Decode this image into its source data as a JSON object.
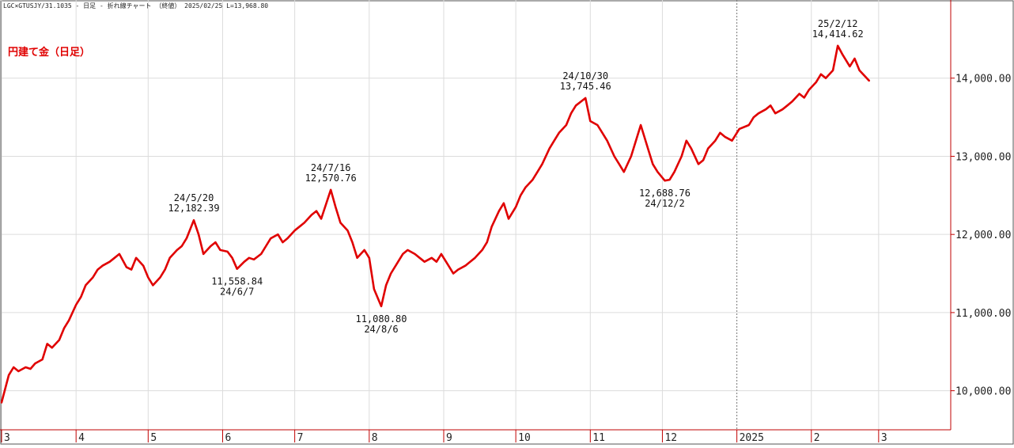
{
  "header": {
    "text": "LGC×GTUSJY/31.1035 - 日足 - 折れ線チャート （終値）  2025/02/25  L=13,968.80"
  },
  "chart_data": {
    "type": "line",
    "title": "円建て金（日足）",
    "series_color": "#e00000",
    "ylim": [
      9500,
      15000
    ],
    "y_ticks": [
      10000,
      11000,
      12000,
      13000,
      14000
    ],
    "y_tick_labels": [
      "10,000.00",
      "11,000.00",
      "12,000.00",
      "13,000.00",
      "14,000.00"
    ],
    "grid": true,
    "x_month_labels": [
      "3",
      "4",
      "5",
      "6",
      "7",
      "8",
      "9",
      "10",
      "11",
      "12",
      "2025",
      "2",
      "3"
    ],
    "year_divider_label": "2025",
    "x_start": "2024-03-01",
    "x_end": "2025-03-31",
    "series": [
      {
        "x": [
          "2024-03-01",
          "2024-03-04",
          "2024-03-06",
          "2024-03-08",
          "2024-03-11",
          "2024-03-13",
          "2024-03-15",
          "2024-03-18",
          "2024-03-20",
          "2024-03-22",
          "2024-03-25",
          "2024-03-27",
          "2024-03-29",
          "2024-04-01",
          "2024-04-03",
          "2024-04-05",
          "2024-04-08",
          "2024-04-10",
          "2024-04-12",
          "2024-04-15",
          "2024-04-17",
          "2024-04-19",
          "2024-04-22",
          "2024-04-24",
          "2024-04-26",
          "2024-04-29",
          "2024-05-01",
          "2024-05-03",
          "2024-05-06",
          "2024-05-08",
          "2024-05-10",
          "2024-05-13",
          "2024-05-15",
          "2024-05-17",
          "2024-05-20",
          "2024-05-22",
          "2024-05-24",
          "2024-05-27",
          "2024-05-29",
          "2024-05-31",
          "2024-06-03",
          "2024-06-05",
          "2024-06-07",
          "2024-06-10",
          "2024-06-12",
          "2024-06-14",
          "2024-06-17",
          "2024-06-19",
          "2024-06-21",
          "2024-06-24",
          "2024-06-26",
          "2024-06-28",
          "2024-07-01",
          "2024-07-03",
          "2024-07-05",
          "2024-07-08",
          "2024-07-10",
          "2024-07-12",
          "2024-07-16",
          "2024-07-18",
          "2024-07-20",
          "2024-07-23",
          "2024-07-25",
          "2024-07-27",
          "2024-07-30",
          "2024-08-01",
          "2024-08-03",
          "2024-08-06",
          "2024-08-08",
          "2024-08-10",
          "2024-08-13",
          "2024-08-15",
          "2024-08-17",
          "2024-08-20",
          "2024-08-22",
          "2024-08-24",
          "2024-08-27",
          "2024-08-29",
          "2024-08-31",
          "2024-09-03",
          "2024-09-05",
          "2024-09-07",
          "2024-09-10",
          "2024-09-12",
          "2024-09-14",
          "2024-09-17",
          "2024-09-19",
          "2024-09-21",
          "2024-09-24",
          "2024-09-26",
          "2024-09-28",
          "2024-10-01",
          "2024-10-03",
          "2024-10-05",
          "2024-10-08",
          "2024-10-10",
          "2024-10-12",
          "2024-10-15",
          "2024-10-17",
          "2024-10-19",
          "2024-10-22",
          "2024-10-24",
          "2024-10-26",
          "2024-10-30",
          "2024-11-01",
          "2024-11-04",
          "2024-11-06",
          "2024-11-08",
          "2024-11-11",
          "2024-11-13",
          "2024-11-15",
          "2024-11-18",
          "2024-11-20",
          "2024-11-22",
          "2024-11-25",
          "2024-11-27",
          "2024-11-29",
          "2024-12-02",
          "2024-12-04",
          "2024-12-06",
          "2024-12-09",
          "2024-12-11",
          "2024-12-13",
          "2024-12-16",
          "2024-12-18",
          "2024-12-20",
          "2024-12-23",
          "2024-12-25",
          "2024-12-27",
          "2024-12-30",
          "2025-01-02",
          "2025-01-06",
          "2025-01-08",
          "2025-01-10",
          "2025-01-13",
          "2025-01-15",
          "2025-01-17",
          "2025-01-20",
          "2025-01-22",
          "2025-01-24",
          "2025-01-27",
          "2025-01-29",
          "2025-01-31",
          "2025-02-03",
          "2025-02-05",
          "2025-02-07",
          "2025-02-10",
          "2025-02-12",
          "2025-02-14",
          "2025-02-17",
          "2025-02-19",
          "2025-02-21",
          "2025-02-25"
        ],
        "y": [
          9850,
          10200,
          10300,
          10250,
          10300,
          10280,
          10350,
          10400,
          10600,
          10550,
          10650,
          10800,
          10900,
          11100,
          11200,
          11350,
          11450,
          11550,
          11600,
          11650,
          11700,
          11750,
          11580,
          11550,
          11700,
          11600,
          11450,
          11350,
          11450,
          11550,
          11700,
          11800,
          11850,
          11950,
          12182.39,
          12000,
          11750,
          11850,
          11900,
          11800,
          11780,
          11700,
          11558.84,
          11650,
          11700,
          11680,
          11750,
          11850,
          11950,
          12000,
          11900,
          11950,
          12050,
          12100,
          12150,
          12250,
          12300,
          12200,
          12570.76,
          12350,
          12150,
          12050,
          11900,
          11700,
          11800,
          11700,
          11300,
          11080.8,
          11350,
          11500,
          11650,
          11750,
          11800,
          11750,
          11700,
          11650,
          11700,
          11650,
          11750,
          11600,
          11500,
          11550,
          11600,
          11650,
          11700,
          11800,
          11900,
          12100,
          12300,
          12400,
          12200,
          12350,
          12500,
          12600,
          12700,
          12800,
          12900,
          13100,
          13200,
          13300,
          13400,
          13550,
          13650,
          13745.46,
          13450,
          13400,
          13300,
          13200,
          13000,
          12900,
          12800,
          13000,
          13200,
          13400,
          13100,
          12900,
          12800,
          12688.76,
          12700,
          12800,
          13000,
          13200,
          13100,
          12900,
          12950,
          13100,
          13200,
          13300,
          13250,
          13200,
          13350,
          13400,
          13500,
          13550,
          13600,
          13650,
          13550,
          13600,
          13650,
          13700,
          13800,
          13750,
          13850,
          13950,
          14050,
          14000,
          14100,
          14414.62,
          14300,
          14150,
          14250,
          14100,
          13968.8
        ]
      }
    ],
    "annotations": [
      {
        "date": "24/5/20",
        "value": "12,182.39",
        "x": "2024-05-20",
        "y": 12182.39,
        "position": "above"
      },
      {
        "date": "24/6/7",
        "value": "11,558.84",
        "x": "2024-06-07",
        "y": 11558.84,
        "position": "below"
      },
      {
        "date": "24/7/16",
        "value": "12,570.76",
        "x": "2024-07-16",
        "y": 12570.76,
        "position": "above"
      },
      {
        "date": "24/8/6",
        "value": "11,080.80",
        "x": "2024-08-06",
        "y": 11080.8,
        "position": "below"
      },
      {
        "date": "24/10/30",
        "value": "13,745.46",
        "x": "2024-10-30",
        "y": 13745.46,
        "position": "above"
      },
      {
        "date": "24/12/2",
        "value": "12,688.76",
        "x": "2024-12-02",
        "y": 12688.76,
        "position": "below"
      },
      {
        "date": "25/2/12",
        "value": "14,414.62",
        "x": "2025-02-12",
        "y": 14414.62,
        "position": "above"
      }
    ]
  }
}
